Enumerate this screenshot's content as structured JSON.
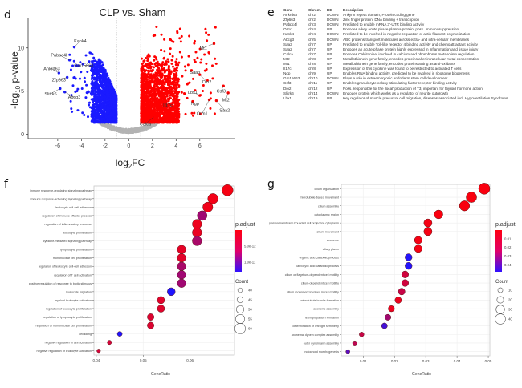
{
  "panels": {
    "d": "d",
    "e": "e",
    "f": "f",
    "g": "g"
  },
  "chart_data": [
    {
      "id": "volcano",
      "type": "scatter",
      "title": "CLP vs. Sham",
      "xlabel": "log2FC",
      "xlabel_main": "log",
      "xlabel_sub": "2",
      "xlabel_tail": "FC",
      "ylabel_pre": "-log",
      "ylabel_sub": "10",
      "ylabel_tail": " p-value",
      "xlim": [
        -8.5,
        9
      ],
      "ylim": [
        -0.5,
        13.5
      ],
      "xticks": [
        -6,
        -4,
        -2,
        0,
        2,
        4,
        6
      ],
      "yticks": [
        0,
        5,
        10
      ],
      "thresholds": {
        "log2fc": [
          -1,
          1
        ],
        "neglog10p": 1.3
      },
      "colors": {
        "down": "#1a1aff",
        "up": "#ff0000",
        "ns": "#b3b3b3"
      },
      "labeled_genes": [
        {
          "gene": "Kank4",
          "x": -4.6,
          "y": 10.1,
          "lx": -4.1,
          "ly": 10.8
        },
        {
          "gene": "Pabpc4l",
          "x": -5.0,
          "y": 8.6,
          "lx": -5.9,
          "ly": 9.2
        },
        {
          "gene": "Gm15663",
          "x": -3.1,
          "y": 7.9,
          "lx": -3.8,
          "ly": 8.0
        },
        {
          "gene": "Ankrd63",
          "x": -5.9,
          "y": 7.1,
          "lx": -6.5,
          "ly": 7.6
        },
        {
          "gene": "Zfp663",
          "x": -5.2,
          "y": 6.6,
          "lx": -5.9,
          "ly": 6.3
        },
        {
          "gene": "Slitrk6",
          "x": -5.8,
          "y": 5.3,
          "lx": -6.6,
          "ly": 4.7
        },
        {
          "gene": "Abcg3",
          "x": -5.4,
          "y": 4.9,
          "lx": -4.6,
          "ly": 4.3
        },
        {
          "gene": "Mt1",
          "x": 7.2,
          "y": 10.5,
          "lx": 6.3,
          "ly": 10.0
        },
        {
          "gene": "Saa3",
          "x": 5.3,
          "y": 7.4,
          "lx": 5.6,
          "ly": 7.2
        },
        {
          "gene": "Dio2",
          "x": 6.0,
          "y": 6.9,
          "lx": 6.6,
          "ly": 6.1
        },
        {
          "gene": "Csf3",
          "x": 8.0,
          "y": 5.6,
          "lx": 7.8,
          "ly": 5.0
        },
        {
          "gene": "Lbx1",
          "x": 6.0,
          "y": 4.5,
          "lx": 5.4,
          "ly": 4.9
        },
        {
          "gene": "Mt2",
          "x": 8.4,
          "y": 4.8,
          "lx": 8.2,
          "ly": 4.0
        },
        {
          "gene": "Ngp",
          "x": 5.4,
          "y": 3.8,
          "lx": 5.6,
          "ly": 3.6
        },
        {
          "gene": "Orm1",
          "x": 6.8,
          "y": 4.0,
          "lx": 6.2,
          "ly": 2.4
        },
        {
          "gene": "Saa2",
          "x": 7.4,
          "y": 3.9,
          "lx": 8.1,
          "ly": 2.8
        },
        {
          "gene": "Il17c",
          "x": 3.1,
          "y": 3.4,
          "lx": 3.3,
          "ly": 3.4
        },
        {
          "gene": "Calca",
          "x": 2.1,
          "y": 2.0,
          "lx": 1.4,
          "ly": 1.2
        }
      ]
    },
    {
      "id": "go-f",
      "type": "scatter",
      "subtype": "dotplot",
      "xlabel": "GeneRatio",
      "xlim": [
        0.0395,
        0.0695
      ],
      "xticks": [
        0.04,
        0.05,
        0.06
      ],
      "xtick_labels": [
        "0.04",
        "0.05",
        "0.06"
      ],
      "color_legend_title": "p.adjust",
      "color_legend_ticks": [
        "5.0e-12",
        "1.0e-11"
      ],
      "color_range": [
        0,
        1.3e-11
      ],
      "size_legend_title": "Count",
      "size_legend_values": [
        40,
        45,
        50,
        55,
        60
      ],
      "size_range": [
        38,
        62
      ],
      "terms": [
        {
          "term": "immune response-regulating signaling pathway",
          "gene_ratio": 0.068,
          "p_adjust": 5e-13,
          "count": 62
        },
        {
          "term": "immune response-activating signaling pathway",
          "gene_ratio": 0.0649,
          "p_adjust": 7e-13,
          "count": 59
        },
        {
          "term": "leukocyte cell-cell adhesion",
          "gene_ratio": 0.0638,
          "p_adjust": 8e-13,
          "count": 58
        },
        {
          "term": "regulation of immune effector process",
          "gene_ratio": 0.0626,
          "p_adjust": 5.5e-12,
          "count": 57
        },
        {
          "term": "regulation of inflammatory response",
          "gene_ratio": 0.0615,
          "p_adjust": 1e-12,
          "count": 56
        },
        {
          "term": "leukocyte proliferation",
          "gene_ratio": 0.0615,
          "p_adjust": 1.2e-12,
          "count": 56
        },
        {
          "term": "cytokine-mediated signaling pathway",
          "gene_ratio": 0.0615,
          "p_adjust": 5e-12,
          "count": 56
        },
        {
          "term": "lymphocyte proliferation",
          "gene_ratio": 0.0582,
          "p_adjust": 1.5e-12,
          "count": 53
        },
        {
          "term": "mononuclear cell proliferation",
          "gene_ratio": 0.0582,
          "p_adjust": 1.7e-12,
          "count": 53
        },
        {
          "term": "regulation of leukocyte cell-cell adhesion",
          "gene_ratio": 0.0582,
          "p_adjust": 5e-12,
          "count": 53
        },
        {
          "term": "regulation of T cell activation",
          "gene_ratio": 0.0582,
          "p_adjust": 5.5e-12,
          "count": 53
        },
        {
          "term": "positive regulation of response to biotic stimulus",
          "gene_ratio": 0.0582,
          "p_adjust": 5.5e-12,
          "count": 53
        },
        {
          "term": "leukocyte migration",
          "gene_ratio": 0.056,
          "p_adjust": 1.3e-11,
          "count": 51
        },
        {
          "term": "myeloid leukocyte activation",
          "gene_ratio": 0.0538,
          "p_adjust": 1.8e-12,
          "count": 49
        },
        {
          "term": "regulation of leukocyte proliferation",
          "gene_ratio": 0.0538,
          "p_adjust": 1.8e-12,
          "count": 49
        },
        {
          "term": "regulation of lymphocyte proliferation",
          "gene_ratio": 0.0516,
          "p_adjust": 2e-12,
          "count": 47
        },
        {
          "term": "regulation of mononuclear cell proliferation",
          "gene_ratio": 0.0516,
          "p_adjust": 2e-12,
          "count": 47
        },
        {
          "term": "cell killing",
          "gene_ratio": 0.045,
          "p_adjust": 1.3e-11,
          "count": 41
        },
        {
          "term": "negative regulation of cell activation",
          "gene_ratio": 0.0428,
          "p_adjust": 2.5e-12,
          "count": 39
        },
        {
          "term": "negative regulation of leukocyte activation",
          "gene_ratio": 0.0405,
          "p_adjust": 2.5e-12,
          "count": 37
        }
      ]
    },
    {
      "id": "go-g",
      "type": "scatter",
      "subtype": "dotplot",
      "xlabel": "GeneRatio",
      "xlim": [
        0.003,
        0.0505
      ],
      "xticks": [
        0.01,
        0.02,
        0.03,
        0.04,
        0.05
      ],
      "xtick_labels": [
        "0.01",
        "0.02",
        "0.03",
        "0.04",
        "0.05"
      ],
      "color_legend_title": "p.adjust",
      "color_legend_ticks": [
        "0.01",
        "0.02",
        "0.03",
        "0.04"
      ],
      "color_range": [
        0,
        0.048
      ],
      "size_legend_title": "Count",
      "size_legend_values": [
        10,
        20,
        30,
        40
      ],
      "size_range": [
        5,
        45
      ],
      "terms": [
        {
          "term": "cilium organization",
          "gene_ratio": 0.0487,
          "p_adjust": 0.001,
          "count": 45
        },
        {
          "term": "microtubule-based movement",
          "gene_ratio": 0.0446,
          "p_adjust": 0.001,
          "count": 41
        },
        {
          "term": "cilium assembly",
          "gene_ratio": 0.0424,
          "p_adjust": 0.001,
          "count": 39
        },
        {
          "term": "cytoplasmic region",
          "gene_ratio": 0.0341,
          "p_adjust": 0.001,
          "count": 31
        },
        {
          "term": "plasma membrane bounded cell projection cytoplasm",
          "gene_ratio": 0.0307,
          "p_adjust": 0.002,
          "count": 28
        },
        {
          "term": "cilium movement",
          "gene_ratio": 0.0307,
          "p_adjust": 0.002,
          "count": 28
        },
        {
          "term": "axoneme",
          "gene_ratio": 0.0276,
          "p_adjust": 0.002,
          "count": 25
        },
        {
          "term": "ciliary plasm",
          "gene_ratio": 0.0276,
          "p_adjust": 0.002,
          "count": 25
        },
        {
          "term": "organic acid catabolic process",
          "gene_ratio": 0.0245,
          "p_adjust": 0.047,
          "count": 22
        },
        {
          "term": "carboxylic acid catabolic process",
          "gene_ratio": 0.0245,
          "p_adjust": 0.047,
          "count": 22
        },
        {
          "term": "cilium or flagellum-dependent cell motility",
          "gene_ratio": 0.0234,
          "p_adjust": 0.01,
          "count": 21
        },
        {
          "term": "cilium-dependent cell motility",
          "gene_ratio": 0.0234,
          "p_adjust": 0.01,
          "count": 21
        },
        {
          "term": "cilium movement involved in cell motility",
          "gene_ratio": 0.0223,
          "p_adjust": 0.012,
          "count": 20
        },
        {
          "term": "microtubule bundle formation",
          "gene_ratio": 0.0212,
          "p_adjust": 0.004,
          "count": 19
        },
        {
          "term": "axoneme assembly",
          "gene_ratio": 0.019,
          "p_adjust": 0.004,
          "count": 17
        },
        {
          "term": "left/right pattern formation",
          "gene_ratio": 0.0179,
          "p_adjust": 0.02,
          "count": 16
        },
        {
          "term": "determination of left/right symmetry",
          "gene_ratio": 0.0168,
          "p_adjust": 0.04,
          "count": 15
        },
        {
          "term": "axonemal dynein complex assembly",
          "gene_ratio": 0.0095,
          "p_adjust": 0.012,
          "count": 9
        },
        {
          "term": "outer dynein arm assembly",
          "gene_ratio": 0.0073,
          "p_adjust": 0.014,
          "count": 7
        },
        {
          "term": "notochord morphogenesis",
          "gene_ratio": 0.0051,
          "p_adjust": 0.035,
          "count": 5
        }
      ]
    }
  ],
  "gene_table": {
    "headers": [
      "Gene",
      "Chrom.",
      "DE",
      "Description"
    ],
    "rows": [
      [
        "Ankrd63",
        "chr2",
        "DOWN",
        "Ankyrin repeat domain, Protein coding gene"
      ],
      [
        "Zfp663",
        "chr2",
        "DOWN",
        "Zinc finger protein, DNA binding + transcription"
      ],
      [
        "Pabpc4l",
        "chr3",
        "DOWN",
        "Predicted to enable mRNA 3'-UTR binding activity"
      ],
      [
        "Orm1",
        "chr4",
        "UP",
        "Encodes a key acute phase plasma protein, poss. Immunosuppression"
      ],
      [
        "Kank4",
        "chr4",
        "DOWN",
        "Predicted to be involved in negative regulation of actin filament polymerization"
      ],
      [
        "Abcg3",
        "chr5",
        "DOWN",
        "ABC proteins transport molecules across extra- and intra-cellular membranes"
      ],
      [
        "Saa3",
        "chr7",
        "UP",
        "Predicted to enable Toll-like receptor 4 binding activity and chemoattractant activity"
      ],
      [
        "Saa2",
        "chr7",
        "UP",
        "Encodes an acute phase protein highly expressed in inflammation and tissue injury"
      ],
      [
        "Calca",
        "chr7",
        "UP",
        "Encodes Calcitonine, involved in calcium and phosphorus metabolism regulation"
      ],
      [
        "Mt2",
        "chr8",
        "UP",
        "Metallothionein gene family, encodes proteins alter intracellular metal concentration"
      ],
      [
        "Mt1",
        "chr8",
        "UP",
        "Metallothionein gene family, encodes proteins acting as anti-oxidants"
      ],
      [
        "Il17c",
        "chr8",
        "UP",
        "Expression of this cytokine was found to be restricted to activated T cells"
      ],
      [
        "Ngp",
        "chr9",
        "UP",
        "Enables RNA binding activity, predicted to be involved in ribosome biogenesis"
      ],
      [
        "Gm15663",
        "chr10",
        "DOWN",
        "Plays a role in extraembryonic endoderm stem cell development"
      ],
      [
        "Csf3",
        "chr11",
        "UP",
        "Enables granulocyte colony-stimulating factor receptor binding activity"
      ],
      [
        "Dio2",
        "chr12",
        "UP",
        "Poss. responsible for the 'local' production of T3, important for thyroid hormone action"
      ],
      [
        "Slitrk6",
        "chr14",
        "DOWN",
        "Endodes protein which works as a regulator of neurite outgrowth"
      ],
      [
        "Lbx1",
        "chr19",
        "UP",
        "Key regulator of muscle precursor cell migration, diseases associated incl. Hypoventilation Syndroms"
      ]
    ]
  }
}
